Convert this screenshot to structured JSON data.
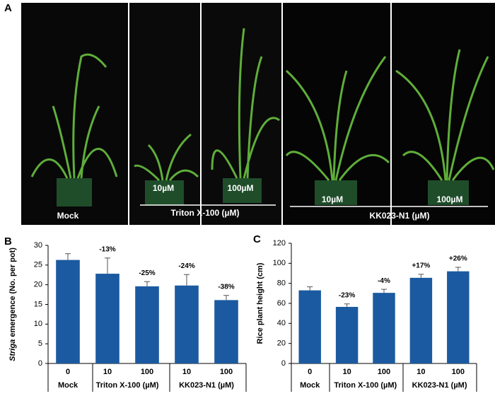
{
  "photo": {
    "panel": "A",
    "labels": [
      "Mock",
      "10µM",
      "100µM",
      "Triton X-100 (µM)",
      "10µM",
      "100µM",
      "KK023-N1 (µM)"
    ]
  },
  "chart_data": [
    {
      "type": "bar",
      "panel": "B",
      "ylabel_italic": "Striga",
      "ylabel": "emergence (No. per pot)",
      "categories": [
        "0",
        "10",
        "100",
        "10",
        "100"
      ],
      "groups": [
        "Mock",
        "Triton X-100 (µM)",
        "KK023-N1 (µM)"
      ],
      "values": [
        26.3,
        22.8,
        19.6,
        19.8,
        16.1
      ],
      "errors": [
        1.6,
        4.0,
        1.2,
        2.8,
        1.2
      ],
      "annotations": [
        null,
        "-13%",
        "-25%",
        "-24%",
        "-38%"
      ],
      "color": "#1b5aa0",
      "ylim": [
        0,
        30
      ],
      "yticks": [
        0,
        5,
        10,
        15,
        20,
        25,
        30
      ]
    },
    {
      "type": "bar",
      "panel": "C",
      "ylabel": "Rice plant height (cm)",
      "categories": [
        "0",
        "10",
        "100",
        "10",
        "100"
      ],
      "groups": [
        "Mock",
        "Triton X-100 (µM)",
        "KK023-N1 (µM)"
      ],
      "values": [
        73,
        56.5,
        70.5,
        85.5,
        92
      ],
      "errors": [
        3.5,
        3,
        3.5,
        3.5,
        4
      ],
      "annotations": [
        null,
        "-23%",
        "-4%",
        "+17%",
        "+26%"
      ],
      "color": "#1b5aa0",
      "ylim": [
        0,
        120
      ],
      "yticks": [
        0,
        20,
        40,
        60,
        80,
        100,
        120
      ]
    }
  ]
}
